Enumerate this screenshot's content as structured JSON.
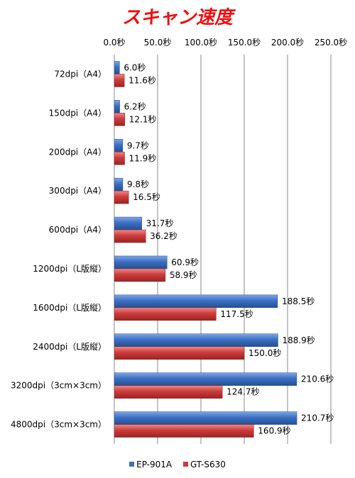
{
  "chart_data": {
    "type": "bar",
    "orientation": "horizontal",
    "title": "スキャン速度",
    "categories": [
      "72dpi（A4）",
      "150dpi（A4）",
      "200dpi（A4）",
      "300dpi（A4）",
      "600dpi（A4）",
      "1200dpi（L版縦）",
      "1600dpi（L版縦）",
      "2400dpi（L版縦）",
      "3200dpi（3cm×3cm）",
      "4800dpi（3cm×3cm）"
    ],
    "series": [
      {
        "name": "EP-901A",
        "color": "#3c6fc4",
        "values": [
          6.0,
          6.2,
          9.7,
          9.8,
          31.7,
          60.9,
          188.5,
          188.9,
          210.6,
          210.7
        ]
      },
      {
        "name": "GT-S630",
        "color": "#cf3b3b",
        "values": [
          11.6,
          12.1,
          11.9,
          16.5,
          36.2,
          58.9,
          117.5,
          150.0,
          124.7,
          160.9
        ]
      }
    ],
    "xlim": [
      0,
      250
    ],
    "xticks": [
      "0.0秒",
      "50.0秒",
      "100.0秒",
      "150.0秒",
      "200.0秒",
      "250.0秒"
    ],
    "value_suffix": "秒",
    "xaxis_position": "top",
    "grid": true,
    "legend_position": "bottom"
  }
}
